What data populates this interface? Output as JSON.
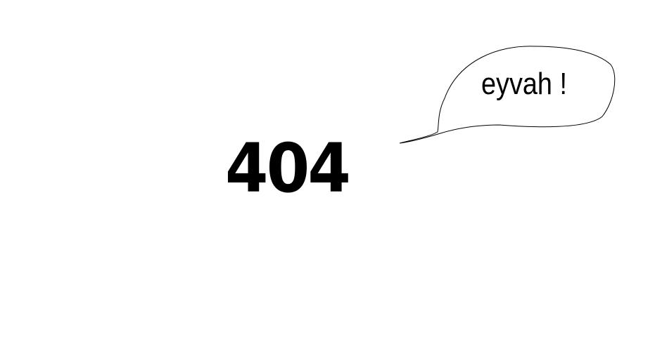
{
  "error": {
    "code": "404"
  },
  "speech_bubble": {
    "text": "eyvah !"
  }
}
